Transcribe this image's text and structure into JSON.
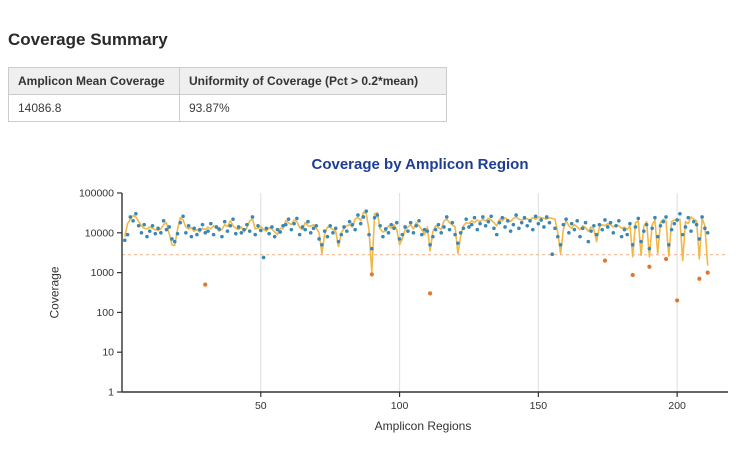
{
  "page": {
    "heading": "Coverage Summary"
  },
  "summary_table": {
    "columns": [
      "Amplicon Mean Coverage",
      "Uniformity of Coverage (Pct > 0.2*mean)"
    ],
    "rows": [
      {
        "amplicon_mean_coverage": "14086.8",
        "uniformity_of_coverage": "93.87%"
      }
    ]
  },
  "chart_data": {
    "type": "scatter",
    "title": "Coverage by Amplicon Region",
    "xlabel": "Amplicon Regions",
    "ylabel": "Coverage",
    "title_color": "#1d3e94",
    "y_scale": "log",
    "ylim": [
      1,
      100000
    ],
    "xlim": [
      0,
      214
    ],
    "y_ticks": [
      1,
      10,
      100,
      1000,
      10000,
      100000
    ],
    "x_ticks": [
      50,
      100,
      150,
      200
    ],
    "grid": "vertical-only",
    "threshold": {
      "label": "0.2*mean",
      "value": 2817.4,
      "color": "#f2b089",
      "style": "dashed"
    },
    "colors": {
      "line": "#f0b43e",
      "scatter": "#3987b5",
      "low": "#e2762c",
      "axis": "#333333",
      "grid": "#e2e2e2"
    },
    "series": [
      {
        "name": "amplicon-coverage-line",
        "type": "line",
        "color": "#f0b43e",
        "x_start": 1,
        "x_step": 1,
        "values": [
          8000,
          17000,
          22000,
          27000,
          25000,
          19000,
          15000,
          13000,
          12500,
          14000,
          13000,
          12000,
          11500,
          12500,
          16000,
          18000,
          9500,
          5000,
          4800,
          12000,
          24000,
          21000,
          14000,
          12500,
          13500,
          11000,
          12000,
          10500,
          13000,
          12000,
          14000,
          12500,
          15000,
          13500,
          11000,
          12000,
          16000,
          14500,
          20000,
          15000,
          13000,
          12000,
          14000,
          10500,
          13500,
          20000,
          22000,
          12500,
          13000,
          14500,
          12000,
          11000,
          13500,
          12500,
          10500,
          9000,
          13000,
          12500,
          20000,
          18000,
          16000,
          21000,
          19000,
          13500,
          12000,
          18000,
          15000,
          14500,
          16000,
          13000,
          10000,
          3000,
          9000,
          14000,
          13500,
          12000,
          11000,
          4500,
          10000,
          13000,
          15000,
          16000,
          14000,
          22000,
          25000,
          20000,
          33000,
          30000,
          12000,
          1000,
          30000,
          32000,
          12500,
          10500,
          11000,
          15000,
          13000,
          16000,
          12000,
          5000,
          7000,
          12000,
          14000,
          16000,
          12500,
          18000,
          15000,
          12000,
          9000,
          14000,
          3500,
          11000,
          15000,
          13500,
          12000,
          20000,
          22000,
          18000,
          16000,
          14000,
          3000,
          8000,
          15000,
          18000,
          17000,
          20000,
          18000,
          21000,
          19000,
          22000,
          20000,
          23000,
          21000,
          18000,
          15000,
          22000,
          20000,
          24000,
          21000,
          19000,
          23000,
          25000,
          22000,
          21000,
          22000,
          22500,
          21000,
          24000,
          22000,
          25000,
          24000,
          23000,
          22000,
          24000,
          23000,
          22000,
          10000,
          3000,
          12000,
          20000,
          15000,
          13000,
          16000,
          14000,
          12000,
          15000,
          13500,
          11000,
          14000,
          12000,
          6000,
          14000,
          16000,
          15000,
          17000,
          16000,
          14000,
          16000,
          15000,
          13000,
          14000,
          12000,
          15000,
          2500,
          18000,
          20000,
          2700,
          15000,
          19000,
          2500,
          16000,
          21000,
          3000,
          18000,
          22000,
          20000,
          2600,
          19000,
          21000,
          20000,
          22000,
          2000,
          19000,
          17000,
          25000,
          22000,
          20000,
          2200,
          23000,
          15000,
          1500
        ]
      },
      {
        "name": "amplicon-coverage-points",
        "type": "scatter",
        "color": "#3987b5",
        "x_start": 1,
        "x_step": 1,
        "values": [
          6500,
          9000,
          25000,
          20000,
          30000,
          15000,
          10000,
          16000,
          8000,
          11000,
          15000,
          9500,
          13000,
          10000,
          20000,
          12000,
          14000,
          7000,
          6000,
          9500,
          18000,
          26000,
          10000,
          15000,
          8000,
          13000,
          9000,
          12000,
          16000,
          10000,
          11000,
          17000,
          9000,
          14000,
          12500,
          8000,
          19000,
          11000,
          15000,
          22000,
          9500,
          14000,
          10000,
          12000,
          16000,
          11000,
          25000,
          9000,
          15000,
          11500,
          2400,
          13000,
          9500,
          14000,
          8000,
          12000,
          10500,
          15000,
          16000,
          22000,
          12000,
          17000,
          23000,
          9000,
          14000,
          12000,
          19000,
          10000,
          13000,
          15000,
          7000,
          5000,
          11000,
          8000,
          15000,
          10000,
          13000,
          6000,
          9000,
          14000,
          11000,
          19000,
          16000,
          12000,
          28000,
          17000,
          25000,
          35000,
          9000,
          4000,
          24000,
          28000,
          15000,
          8000,
          12500,
          10000,
          16000,
          13000,
          18000,
          7000,
          9000,
          14000,
          11000,
          18000,
          10000,
          15000,
          20000,
          9000,
          12000,
          11000,
          5000,
          8000,
          12000,
          16000,
          10000,
          14000,
          25000,
          12000,
          18000,
          9000,
          5500,
          10000,
          13000,
          22000,
          14000,
          16000,
          24000,
          12000,
          17000,
          25000,
          15000,
          19000,
          26000,
          13000,
          9000,
          18000,
          24000,
          14000,
          20000,
          11000,
          16000,
          28000,
          13000,
          18000,
          24000,
          15000,
          20000,
          12000,
          26000,
          17000,
          21000,
          14000,
          25000,
          18000,
          2900,
          13000,
          8000,
          5000,
          16000,
          22000,
          10000,
          17000,
          12000,
          20000,
          8000,
          13000,
          18000,
          6000,
          11000,
          15000,
          9000,
          16000,
          12000,
          21000,
          14000,
          18000,
          10000,
          15000,
          20000,
          8000,
          12000,
          9000,
          17000,
          5000,
          14000,
          23000,
          6000,
          11000,
          16000,
          4000,
          13000,
          24000,
          8000,
          15000,
          19000,
          25000,
          5000,
          12000,
          17000,
          21000,
          30000,
          9000,
          14000,
          24000,
          11000,
          19000,
          16000,
          7000,
          25000,
          13000,
          10000
        ]
      },
      {
        "name": "low-coverage-points",
        "type": "scatter",
        "color": "#e2762c",
        "points": [
          {
            "x": 30,
            "y": 500
          },
          {
            "x": 90,
            "y": 900
          },
          {
            "x": 111,
            "y": 300
          },
          {
            "x": 174,
            "y": 2000
          },
          {
            "x": 184,
            "y": 870
          },
          {
            "x": 190,
            "y": 1400
          },
          {
            "x": 196,
            "y": 2200
          },
          {
            "x": 200,
            "y": 200
          },
          {
            "x": 208,
            "y": 700
          },
          {
            "x": 211,
            "y": 1000
          }
        ]
      }
    ]
  }
}
